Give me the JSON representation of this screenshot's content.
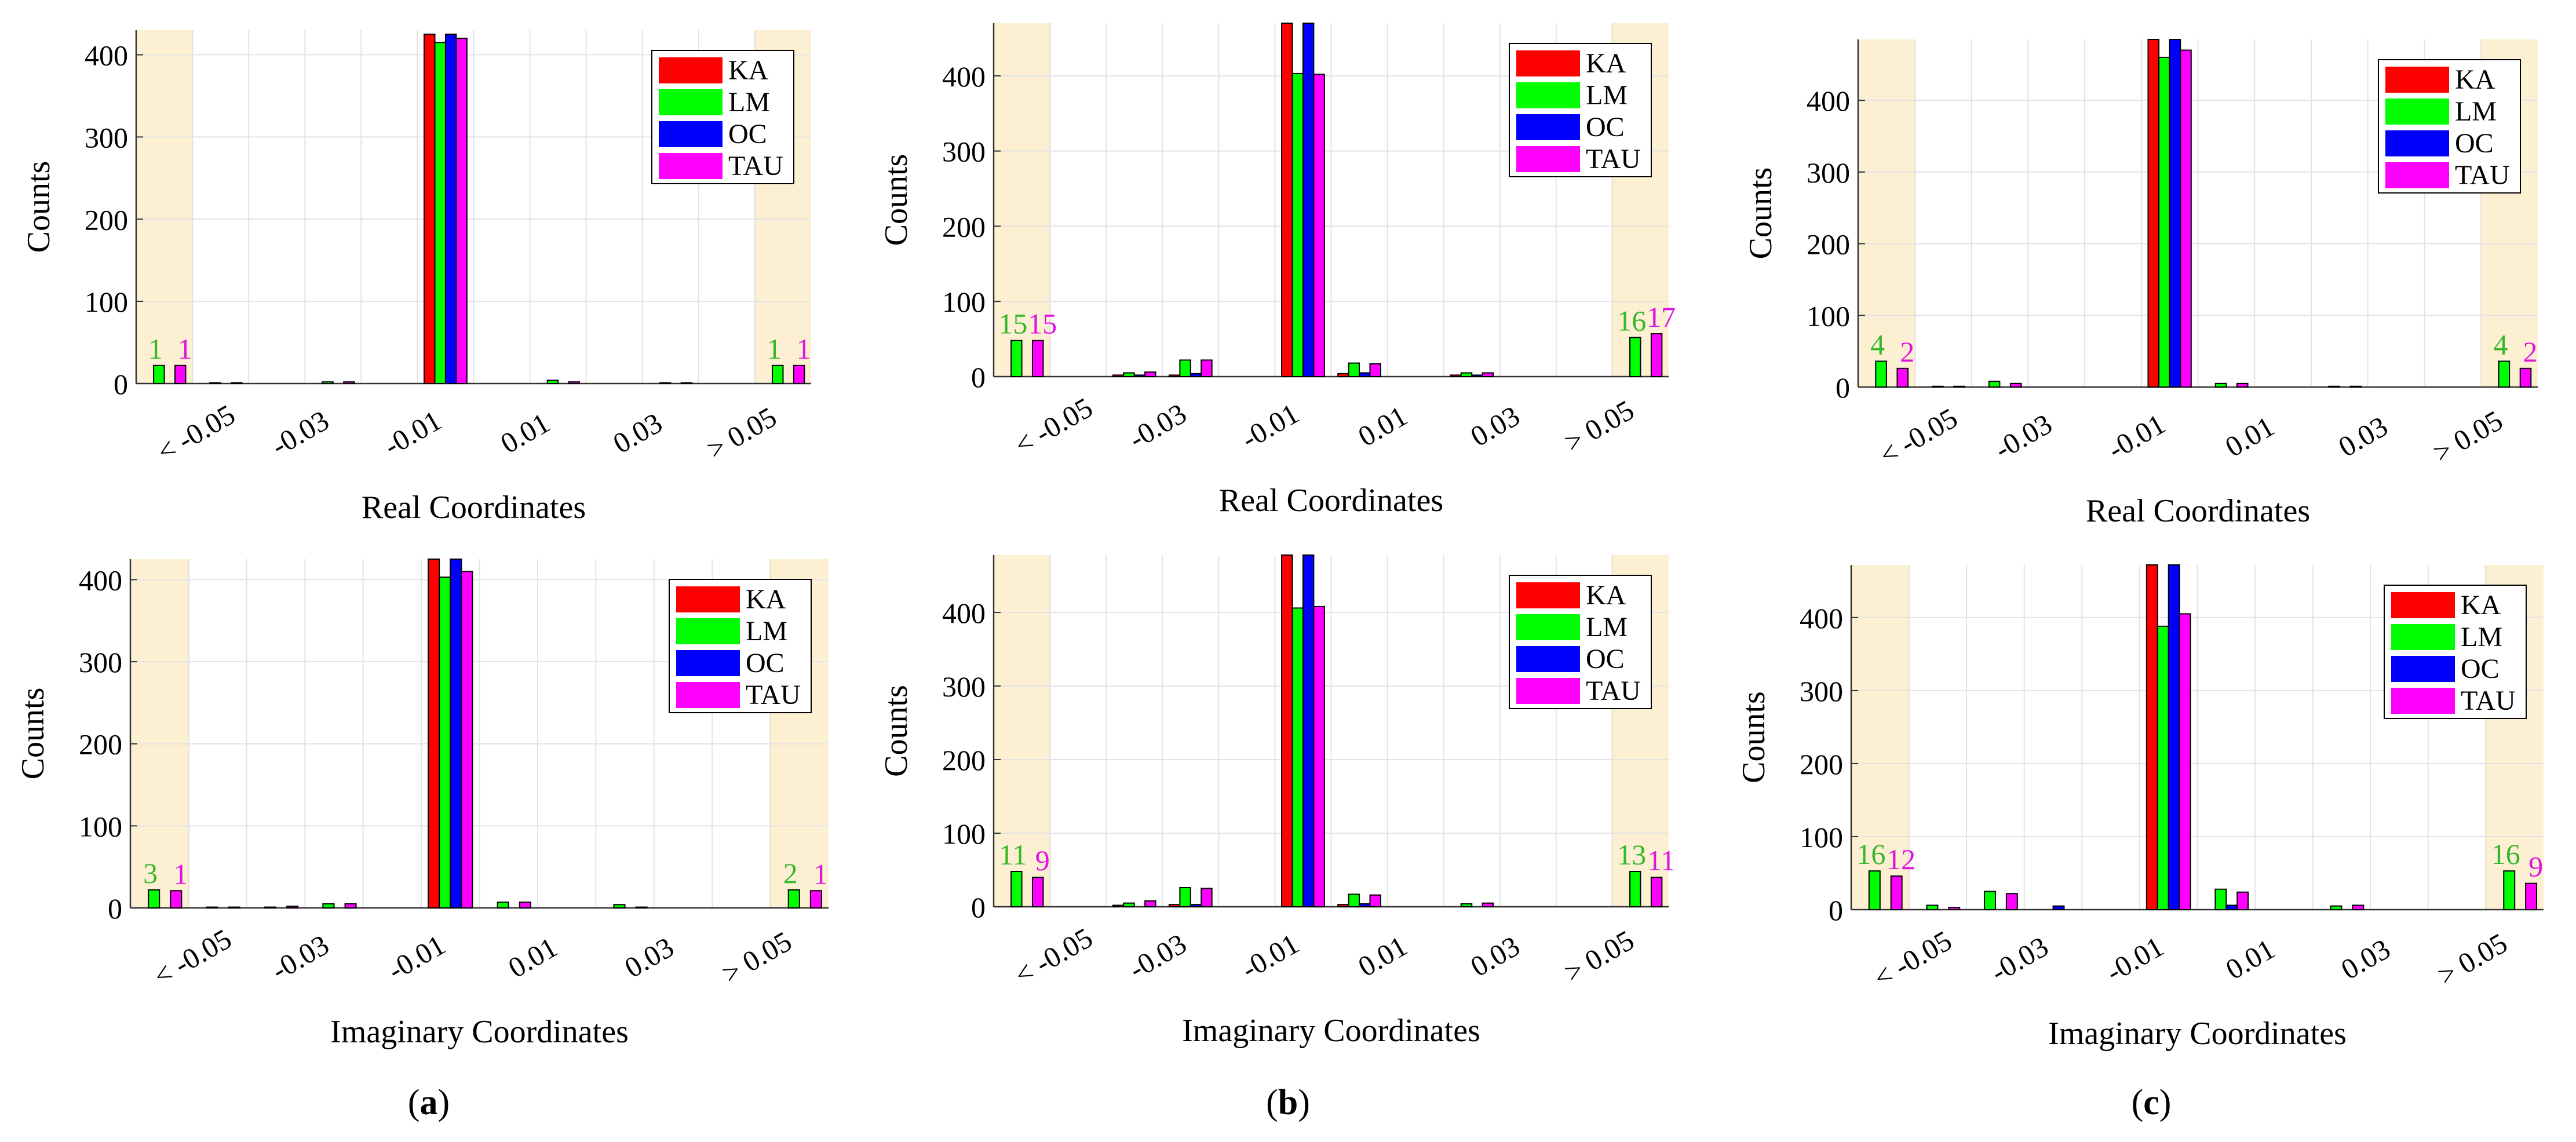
{
  "colors": {
    "KA": "#ff0000",
    "LM": "#00ff00",
    "OC": "#0000ff",
    "TAU": "#ff00ff",
    "lm_text": "#35b82c",
    "tau_text": "#e012e0",
    "highlight": "#fdf0d2"
  },
  "series_names": [
    "KA",
    "LM",
    "OC",
    "TAU"
  ],
  "tick_labels": [
    "< -0.05",
    "-0.03",
    "-0.01",
    "0.01",
    "0.03",
    "> 0.05"
  ],
  "captions": [
    {
      "open": "(",
      "letter": "a",
      "close": ")"
    },
    {
      "open": "(",
      "letter": "b",
      "close": ")"
    },
    {
      "open": "(",
      "letter": "c",
      "close": ")"
    }
  ],
  "chart_data": [
    {
      "type": "bar",
      "panel": "a",
      "row": "top",
      "xlabel": "Real Coordinates",
      "ylabel": "Counts",
      "yticks": [
        0,
        100,
        200,
        300,
        400
      ],
      "ylim": [
        0,
        430
      ],
      "outlier_labels": {
        "left": [
          "1",
          "1"
        ],
        "right": [
          "1",
          "1"
        ]
      },
      "series": [
        {
          "name": "KA",
          "values": [
            0,
            0,
            0,
            0,
            0,
            425,
            0,
            0,
            0,
            0,
            0,
            0
          ]
        },
        {
          "name": "LM",
          "values": [
            22,
            1,
            0,
            2,
            0,
            415,
            0,
            4,
            0,
            1,
            0,
            22
          ]
        },
        {
          "name": "OC",
          "values": [
            0,
            0,
            0,
            0,
            0,
            425,
            0,
            0,
            0,
            0,
            0,
            0
          ]
        },
        {
          "name": "TAU",
          "values": [
            22,
            1,
            0,
            2,
            0,
            420,
            0,
            2,
            0,
            1,
            0,
            22
          ]
        }
      ]
    },
    {
      "type": "bar",
      "panel": "b",
      "row": "top",
      "xlabel": "Real Coordinates",
      "ylabel": "Counts",
      "yticks": [
        0,
        100,
        200,
        300,
        400
      ],
      "ylim": [
        0,
        470
      ],
      "outlier_labels": {
        "left": [
          "15",
          "15"
        ],
        "right": [
          "16",
          "17"
        ]
      },
      "series": [
        {
          "name": "KA",
          "values": [
            0,
            0,
            2,
            2,
            0,
            470,
            4,
            0,
            2,
            0,
            0,
            0
          ]
        },
        {
          "name": "LM",
          "values": [
            48,
            0,
            5,
            22,
            0,
            403,
            18,
            0,
            5,
            0,
            0,
            52
          ]
        },
        {
          "name": "OC",
          "values": [
            0,
            0,
            2,
            4,
            0,
            470,
            5,
            0,
            2,
            0,
            0,
            0
          ]
        },
        {
          "name": "TAU",
          "values": [
            48,
            0,
            6,
            22,
            0,
            402,
            17,
            0,
            5,
            0,
            0,
            57
          ]
        }
      ]
    },
    {
      "type": "bar",
      "panel": "c",
      "row": "top",
      "xlabel": "Real Coordinates",
      "ylabel": "Counts",
      "yticks": [
        0,
        100,
        200,
        300,
        400
      ],
      "ylim": [
        0,
        485
      ],
      "outlier_labels": {
        "left": [
          "4",
          "2"
        ],
        "right": [
          "4",
          "2"
        ]
      },
      "series": [
        {
          "name": "KA",
          "values": [
            0,
            0,
            0,
            0,
            0,
            485,
            0,
            0,
            0,
            0,
            0,
            0
          ]
        },
        {
          "name": "LM",
          "values": [
            36,
            1,
            8,
            0,
            0,
            460,
            5,
            0,
            1,
            0,
            0,
            36
          ]
        },
        {
          "name": "OC",
          "values": [
            0,
            0,
            0,
            0,
            0,
            485,
            0,
            0,
            0,
            0,
            0,
            0
          ]
        },
        {
          "name": "TAU",
          "values": [
            26,
            1,
            5,
            0,
            0,
            470,
            5,
            0,
            1,
            0,
            0,
            26
          ]
        }
      ]
    },
    {
      "type": "bar",
      "panel": "a",
      "row": "bottom",
      "xlabel": "Imaginary Coordinates",
      "ylabel": "Counts",
      "yticks": [
        0,
        100,
        200,
        300,
        400
      ],
      "ylim": [
        0,
        425
      ],
      "outlier_labels": {
        "left": [
          "3",
          "1"
        ],
        "right": [
          "2",
          "1"
        ]
      },
      "series": [
        {
          "name": "KA",
          "values": [
            0,
            0,
            0,
            0,
            0,
            425,
            0,
            0,
            0,
            0,
            0,
            0
          ]
        },
        {
          "name": "LM",
          "values": [
            22,
            1,
            1,
            5,
            0,
            403,
            7,
            0,
            4,
            0,
            0,
            22
          ]
        },
        {
          "name": "OC",
          "values": [
            0,
            0,
            0,
            0,
            0,
            425,
            0,
            0,
            0,
            0,
            0,
            0
          ]
        },
        {
          "name": "TAU",
          "values": [
            21,
            1,
            2,
            5,
            0,
            410,
            7,
            0,
            1,
            0,
            0,
            21
          ]
        }
      ]
    },
    {
      "type": "bar",
      "panel": "b",
      "row": "bottom",
      "xlabel": "Imaginary Coordinates",
      "ylabel": "Counts",
      "yticks": [
        0,
        100,
        200,
        300,
        400
      ],
      "ylim": [
        0,
        478
      ],
      "outlier_labels": {
        "left": [
          "11",
          "9"
        ],
        "right": [
          "13",
          "11"
        ]
      },
      "series": [
        {
          "name": "KA",
          "values": [
            0,
            0,
            2,
            3,
            0,
            478,
            3,
            0,
            0,
            0,
            0,
            0
          ]
        },
        {
          "name": "LM",
          "values": [
            48,
            0,
            5,
            26,
            0,
            406,
            17,
            0,
            4,
            0,
            0,
            48
          ]
        },
        {
          "name": "OC",
          "values": [
            0,
            0,
            0,
            3,
            0,
            478,
            4,
            0,
            0,
            0,
            0,
            0
          ]
        },
        {
          "name": "TAU",
          "values": [
            40,
            0,
            8,
            25,
            0,
            408,
            16,
            0,
            5,
            0,
            0,
            40
          ]
        }
      ]
    },
    {
      "type": "bar",
      "panel": "c",
      "row": "bottom",
      "xlabel": "Imaginary Coordinates",
      "ylabel": "Counts",
      "yticks": [
        0,
        100,
        200,
        300,
        400
      ],
      "ylim": [
        0,
        472
      ],
      "outlier_labels": {
        "left": [
          "16",
          "12"
        ],
        "right": [
          "16",
          "9"
        ]
      },
      "series": [
        {
          "name": "KA",
          "values": [
            0,
            0,
            0,
            0,
            0,
            472,
            0,
            0,
            0,
            0,
            0,
            0
          ]
        },
        {
          "name": "LM",
          "values": [
            53,
            6,
            25,
            0,
            0,
            388,
            28,
            0,
            5,
            0,
            0,
            53
          ]
        },
        {
          "name": "OC",
          "values": [
            0,
            0,
            0,
            5,
            0,
            472,
            6,
            0,
            0,
            0,
            0,
            0
          ]
        },
        {
          "name": "TAU",
          "values": [
            46,
            3,
            22,
            0,
            0,
            405,
            24,
            0,
            6,
            0,
            0,
            36
          ]
        }
      ]
    }
  ]
}
